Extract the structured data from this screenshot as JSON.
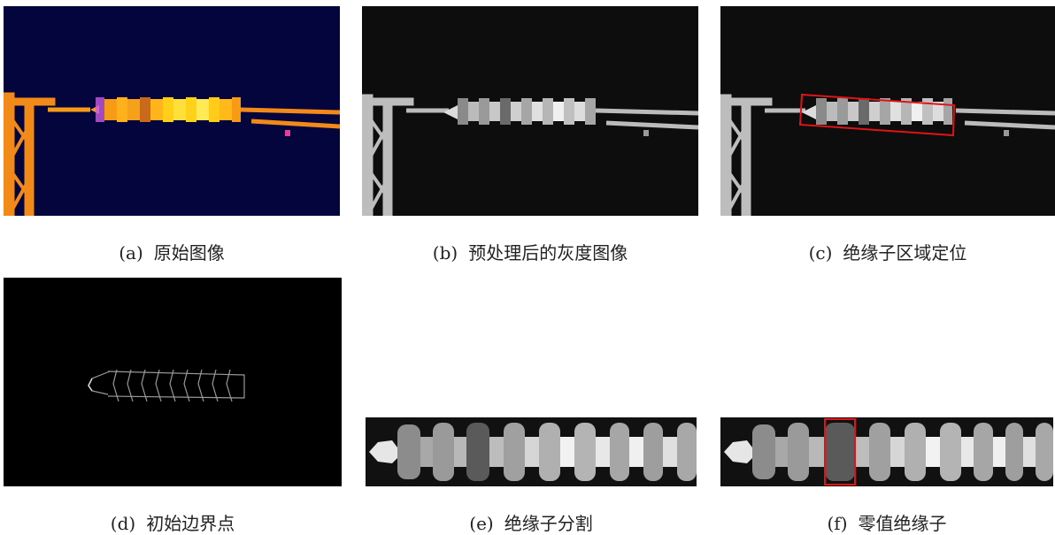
{
  "figure": {
    "panels": [
      {
        "id": "a",
        "tag": "(a)",
        "caption": "原始图像"
      },
      {
        "id": "b",
        "tag": "(b)",
        "caption": "预处理后的灰度图像"
      },
      {
        "id": "c",
        "tag": "(c)",
        "caption": "绝缘子区域定位"
      },
      {
        "id": "d",
        "tag": "(d)",
        "caption": "初始边界点"
      },
      {
        "id": "e",
        "tag": "(e)",
        "caption": "绝缘子分割"
      },
      {
        "id": "f",
        "tag": "(f)",
        "caption": "零值绝缘子"
      }
    ]
  },
  "colors": {
    "thermal_background": "#05053e",
    "thermal_hot": "#ffd21a",
    "thermal_warm": "#f79a16",
    "highlight_box": "#e01414",
    "gray_background": "#0d0d0d"
  }
}
